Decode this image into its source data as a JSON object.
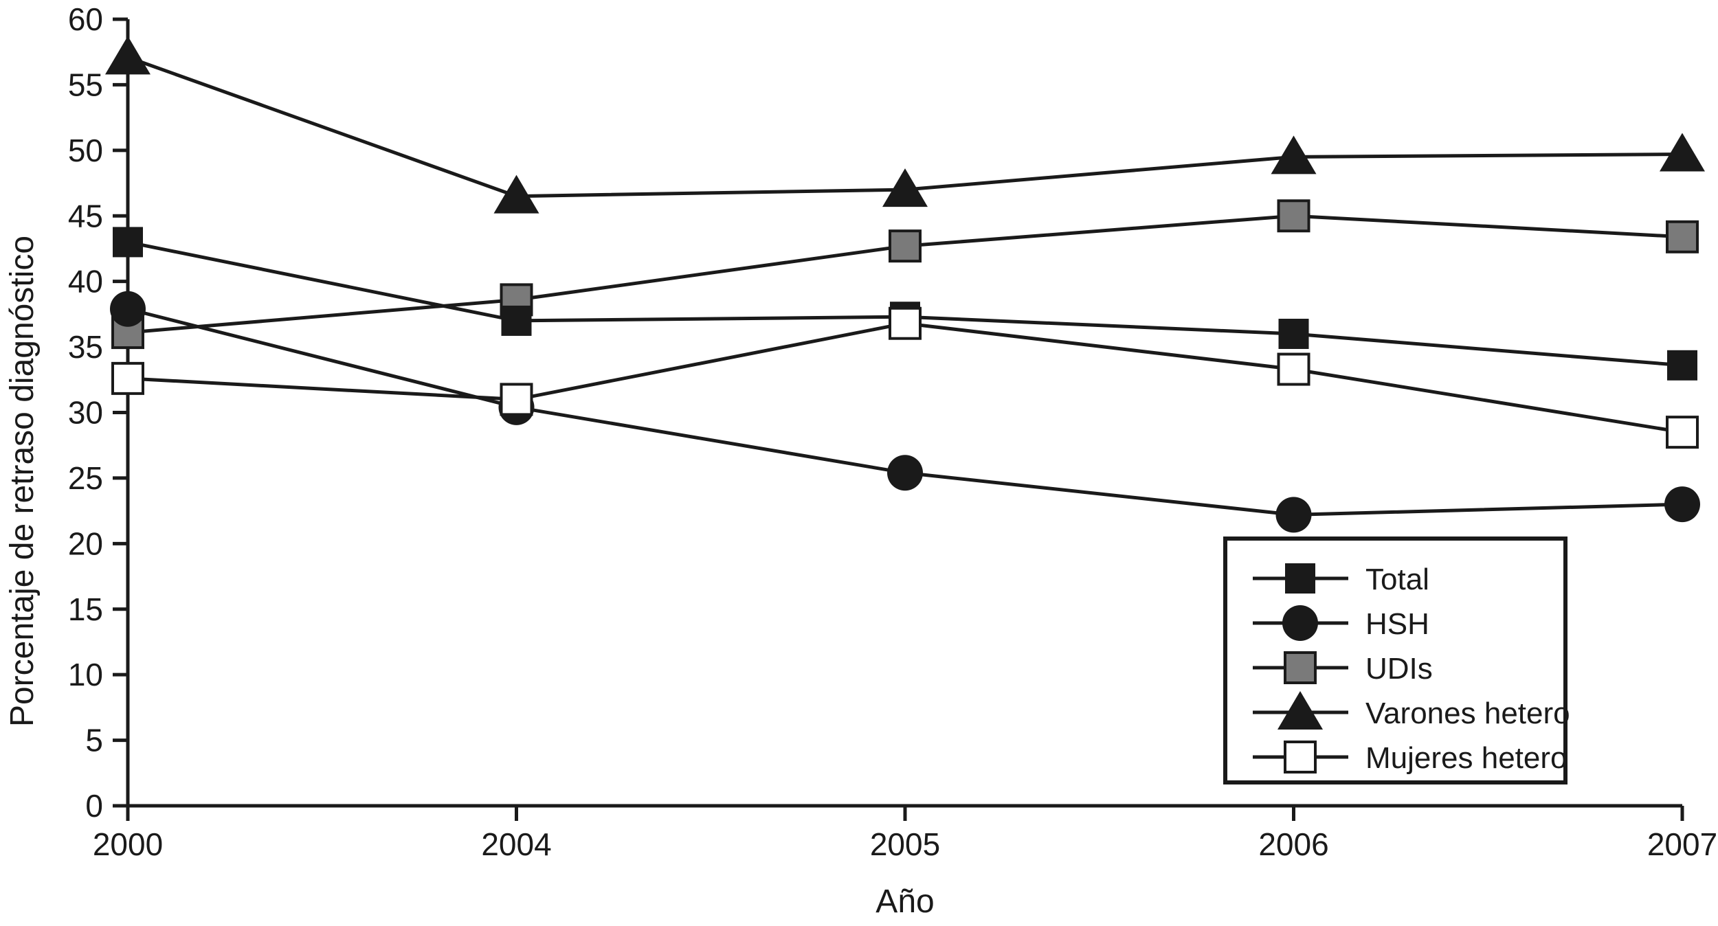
{
  "figure": {
    "background": "#ffffff",
    "axis_color": "#1a1a1a"
  },
  "chart_data": {
    "type": "line",
    "title": "",
    "xlabel": "Año",
    "ylabel": "Porcentaje de retraso diagnóstico",
    "categories": [
      "2000",
      "2004",
      "2005",
      "2006",
      "2007"
    ],
    "ylim": [
      0,
      60
    ],
    "yticks": [
      0,
      5,
      10,
      15,
      20,
      25,
      30,
      35,
      40,
      45,
      50,
      55,
      60
    ],
    "grid": false,
    "legend_position": "inside-lower-right",
    "line_color": "#1a1a1a",
    "series": [
      {
        "name": "Total",
        "marker": "filled-square",
        "fill": "#1a1a1a",
        "stroke": "#1a1a1a",
        "values": [
          43.0,
          37.0,
          37.3,
          36.0,
          33.6
        ]
      },
      {
        "name": "HSH",
        "marker": "filled-circle",
        "fill": "#1a1a1a",
        "stroke": "#1a1a1a",
        "values": [
          37.9,
          30.4,
          25.4,
          22.2,
          23.0
        ]
      },
      {
        "name": "UDIs",
        "marker": "gray-square",
        "fill": "#7a7a7a",
        "stroke": "#1a1a1a",
        "values": [
          36.1,
          38.6,
          42.7,
          45.0,
          43.4
        ]
      },
      {
        "name": "Varones hetero",
        "marker": "filled-triangle",
        "fill": "#1a1a1a",
        "stroke": "#1a1a1a",
        "values": [
          57.1,
          46.5,
          47.0,
          49.5,
          49.7
        ]
      },
      {
        "name": "Mujeres hetero",
        "marker": "open-square",
        "fill": "#ffffff",
        "stroke": "#1a1a1a",
        "values": [
          32.6,
          31.0,
          36.8,
          33.3,
          28.5
        ]
      }
    ],
    "draw_order": [
      3,
      2,
      0,
      1,
      4
    ]
  }
}
